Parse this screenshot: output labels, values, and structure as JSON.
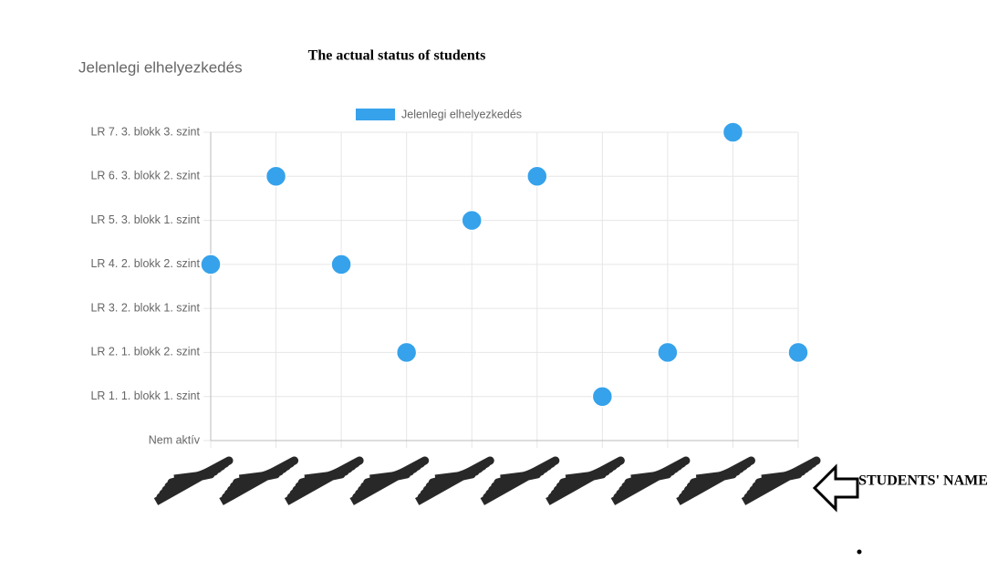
{
  "header": {
    "title": "Jelenlegi elhelyezkedés"
  },
  "chart_data": {
    "type": "scatter",
    "title": "The actual status of students",
    "categories": [
      null,
      null,
      null,
      null,
      null,
      null,
      null,
      null,
      null,
      null
    ],
    "series": [
      {
        "name": "Jelenlegi elhelyezkedés",
        "color": "#36a2eb",
        "values": [
          4,
          6,
          4,
          2,
          5,
          6,
          1,
          2,
          7,
          2
        ]
      }
    ],
    "ylim": [
      0,
      7
    ],
    "yticks": [
      {
        "value": 0,
        "label": "Nem aktív"
      },
      {
        "value": 1,
        "label": "LR 1. 1. blokk 1. szint"
      },
      {
        "value": 2,
        "label": "LR 2. 1. blokk 2. szint"
      },
      {
        "value": 3,
        "label": "LR 3. 2. blokk 1. szint"
      },
      {
        "value": 4,
        "label": "LR 4. 2. blokk 2. szint"
      },
      {
        "value": 5,
        "label": "LR 5. 3. blokk 1. szint"
      },
      {
        "value": 6,
        "label": "LR 6. 3. blokk 2. szint"
      },
      {
        "value": 7,
        "label": "LR 7. 3. blokk 3. szint"
      }
    ],
    "grid": true,
    "legend": "top",
    "annotations": [
      "STUDENTS' NAME"
    ]
  }
}
